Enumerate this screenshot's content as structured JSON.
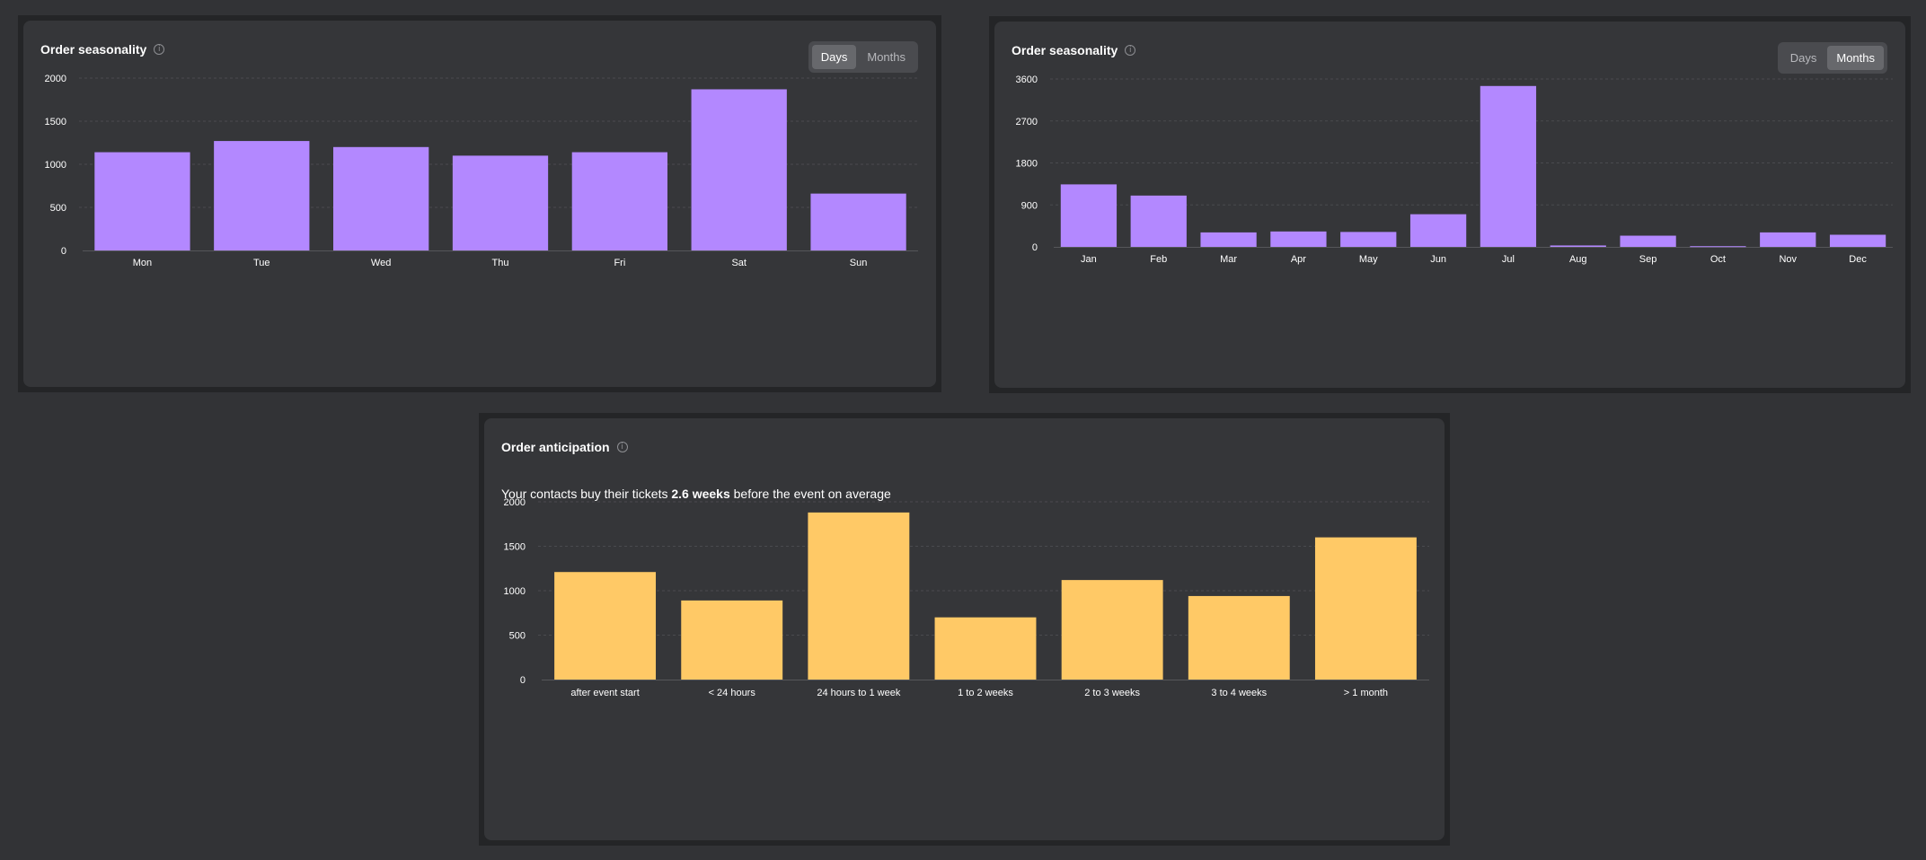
{
  "colors": {
    "purple": "#b388ff",
    "orange": "#ffc966",
    "grid": "#4a4b4f",
    "label": "#ffffff"
  },
  "panels": {
    "days": {
      "title": "Order seasonality",
      "toggle": {
        "days_label": "Days",
        "months_label": "Months",
        "selected": "Days"
      }
    },
    "months": {
      "title": "Order seasonality",
      "toggle": {
        "days_label": "Days",
        "months_label": "Months",
        "selected": "Months"
      }
    },
    "anticipation": {
      "title": "Order anticipation",
      "subtitle_prefix": "Your contacts buy their tickets ",
      "subtitle_value": "2.6 weeks",
      "subtitle_suffix": " before the event on average"
    }
  },
  "chart_data": [
    {
      "id": "days",
      "type": "bar",
      "title": "Order seasonality",
      "categories": [
        "Mon",
        "Tue",
        "Wed",
        "Thu",
        "Fri",
        "Sat",
        "Sun"
      ],
      "values": [
        1140,
        1270,
        1200,
        1100,
        1140,
        1870,
        660
      ],
      "yticks": [
        0,
        500,
        1000,
        1500,
        2000
      ],
      "ylim": [
        0,
        2000
      ],
      "color": "#b388ff",
      "grid": true
    },
    {
      "id": "months",
      "type": "bar",
      "title": "Order seasonality",
      "categories": [
        "Jan",
        "Feb",
        "Mar",
        "Apr",
        "May",
        "Jun",
        "Jul",
        "Aug",
        "Sep",
        "Oct",
        "Nov",
        "Dec"
      ],
      "values": [
        1340,
        1100,
        310,
        330,
        320,
        700,
        3450,
        30,
        240,
        15,
        310,
        260
      ],
      "yticks": [
        0,
        900,
        1800,
        2700,
        3600
      ],
      "ylim": [
        0,
        3600
      ],
      "color": "#b388ff",
      "grid": true
    },
    {
      "id": "anticipation",
      "type": "bar",
      "title": "Order anticipation",
      "categories": [
        "after event start",
        "< 24 hours",
        "24 hours to 1 week",
        "1 to 2 weeks",
        "2 to 3 weeks",
        "3 to 4 weeks",
        "> 1 month"
      ],
      "values": [
        1210,
        890,
        1880,
        700,
        1120,
        940,
        1600
      ],
      "yticks": [
        0,
        500,
        1000,
        1500,
        2000
      ],
      "ylim": [
        0,
        2000
      ],
      "color": "#ffc966",
      "grid": true
    }
  ]
}
